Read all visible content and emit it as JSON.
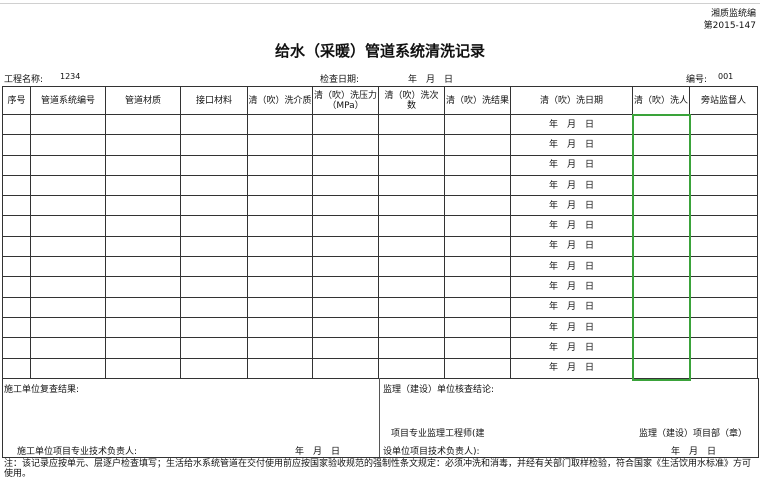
{
  "header": {
    "code_line1": "湘质监统编",
    "code_line2": "第2015-147",
    "title": "给水（采暖）管道系统清洗记录"
  },
  "info": {
    "project_label": "工程名称:",
    "project_value": "1234",
    "date_label": "检查日期:",
    "date_value": "年　月　日",
    "number_label": "编号:",
    "number_value": "001"
  },
  "table": {
    "columns": [
      "序号",
      "管道系统编号",
      "管道材质",
      "接口材料",
      "清（吹）洗介质",
      "清（吹）洗压力（MPa）",
      "清（吹）洗次 数",
      "清（吹）洗结果",
      "清（吹）洗日期",
      "清（吹）洗人",
      "旁站监督人"
    ],
    "row_date": "年　月　日",
    "row_count": 13
  },
  "footer": {
    "contractor_review": "施工单位复查结果:",
    "supervisor_conclusion": "监理（建设）单位核查结论:",
    "supervisor_engineer_1": "项目专业监理工程师(建",
    "supervisor_engineer_2": "设单位项目技术负责人):",
    "supervisor_dept": "监理（建设）项目部（章）",
    "contractor_tech": "施工单位项目专业技术负责人:",
    "date_left": "年　月　日",
    "date_right": "年　月　日"
  },
  "note": "注：该记录应按单元、层逐户检查填写；生活给水系统管道在交付使用前应按国家验收规范的强制性条文规定：必须冲洗和消毒，并经有关部门取样检验，符合国家《生活饮用水标准》方可使用。",
  "colors": {
    "selection": "#3aa33a",
    "border": "#333333"
  }
}
